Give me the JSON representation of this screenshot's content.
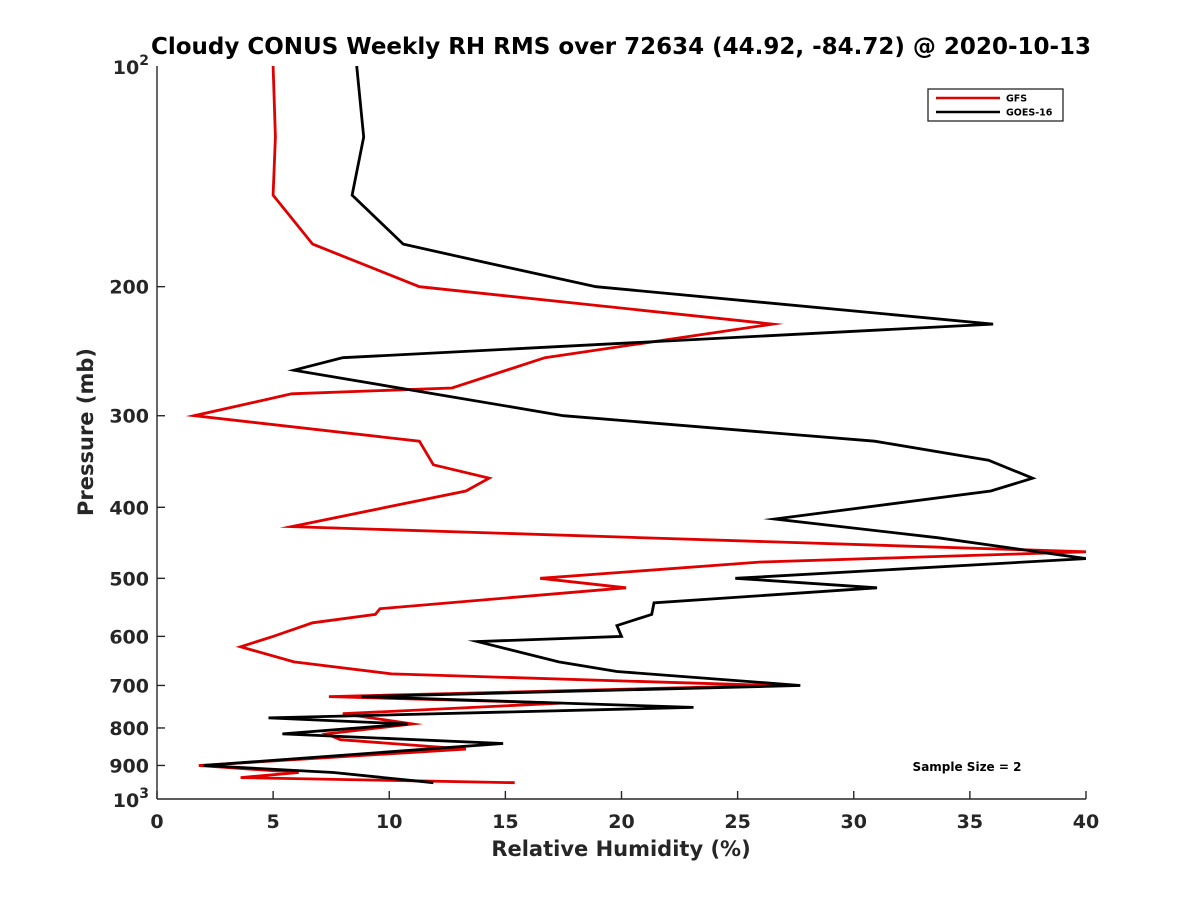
{
  "chart_data": {
    "type": "line",
    "title": "Cloudy CONUS Weekly RH RMS over 72634 (44.92, -84.72) @ 2020-10-13",
    "xlabel": "Relative Humidity (%)",
    "ylabel": "Pressure (mb)",
    "xlim": [
      0,
      40
    ],
    "ylim": [
      100,
      1000
    ],
    "y_scale": "log",
    "y_reversed": true,
    "grid": false,
    "legend_position": "top-right",
    "x_ticks": [
      "0",
      "5",
      "10",
      "15",
      "20",
      "25",
      "30",
      "35",
      "40"
    ],
    "y_ticks": [
      "200",
      "300",
      "400",
      "500",
      "600",
      "700",
      "800",
      "900"
    ],
    "y_ticks_sci": [
      {
        "value": 100,
        "base": "10",
        "exp": "2"
      },
      {
        "value": 1000,
        "base": "10",
        "exp": "3"
      }
    ],
    "annotation": "Sample Size = 2",
    "series": [
      {
        "name": "GFS",
        "color": "#e00000",
        "points": [
          [
            5.0,
            100
          ],
          [
            5.1,
            125
          ],
          [
            5.0,
            150
          ],
          [
            6.7,
            175
          ],
          [
            11.3,
            200
          ],
          [
            26.5,
            225
          ],
          [
            16.7,
            250
          ],
          [
            12.7,
            275
          ],
          [
            5.8,
            280
          ],
          [
            1.6,
            300
          ],
          [
            11.3,
            325
          ],
          [
            11.9,
            350
          ],
          [
            14.3,
            365
          ],
          [
            13.3,
            380
          ],
          [
            5.8,
            425
          ],
          [
            40.0,
            460
          ],
          [
            26.0,
            475
          ],
          [
            16.5,
            500
          ],
          [
            20.2,
            515
          ],
          [
            9.6,
            550
          ],
          [
            9.4,
            560
          ],
          [
            6.7,
            575
          ],
          [
            5.0,
            600
          ],
          [
            3.6,
            620
          ],
          [
            5.9,
            650
          ],
          [
            10.1,
            675
          ],
          [
            26.5,
            700
          ],
          [
            7.4,
            725
          ],
          [
            17.4,
            740
          ],
          [
            8.0,
            765
          ],
          [
            11.0,
            790
          ],
          [
            7.3,
            815
          ],
          [
            7.9,
            830
          ],
          [
            13.3,
            855
          ],
          [
            1.8,
            900
          ],
          [
            6.1,
            920
          ],
          [
            3.6,
            935
          ],
          [
            15.4,
            950
          ]
        ]
      },
      {
        "name": "GOES-16",
        "color": "#000000",
        "points": [
          [
            8.6,
            100
          ],
          [
            8.9,
            125
          ],
          [
            8.4,
            150
          ],
          [
            10.6,
            175
          ],
          [
            14.0,
            185
          ],
          [
            18.9,
            200
          ],
          [
            36.0,
            225
          ],
          [
            8.0,
            250
          ],
          [
            5.9,
            260
          ],
          [
            17.5,
            300
          ],
          [
            30.9,
            325
          ],
          [
            35.8,
            345
          ],
          [
            37.7,
            365
          ],
          [
            35.9,
            380
          ],
          [
            26.6,
            415
          ],
          [
            33.6,
            440
          ],
          [
            40.0,
            470
          ],
          [
            24.9,
            500
          ],
          [
            31.0,
            515
          ],
          [
            21.4,
            540
          ],
          [
            21.3,
            560
          ],
          [
            19.8,
            580
          ],
          [
            20.0,
            600
          ],
          [
            13.8,
            610
          ],
          [
            17.3,
            650
          ],
          [
            19.8,
            670
          ],
          [
            27.7,
            700
          ],
          [
            8.8,
            725
          ],
          [
            23.1,
            750
          ],
          [
            4.8,
            775
          ],
          [
            10.8,
            790
          ],
          [
            5.4,
            815
          ],
          [
            14.9,
            840
          ],
          [
            2.0,
            900
          ],
          [
            7.6,
            920
          ],
          [
            11.9,
            950
          ]
        ]
      }
    ]
  }
}
